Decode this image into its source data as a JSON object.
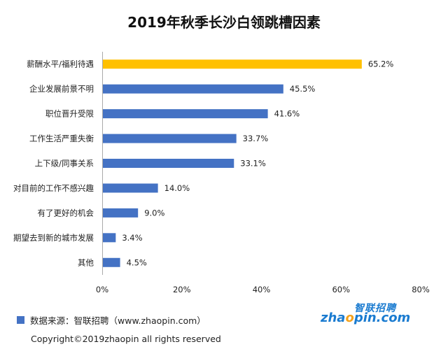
{
  "chart_data": {
    "type": "bar",
    "orientation": "horizontal",
    "title": "2019年秋季长沙白领跳槽因素",
    "categories": [
      "薪酬水平/福利待遇",
      "企业发展前景不明",
      "职位晋升受限",
      "工作生活严重失衡",
      "上下级/同事关系",
      "对目前的工作不感兴趣",
      "有了更好的机会",
      "期望去到新的城市发展",
      "其他"
    ],
    "values": [
      65.2,
      45.5,
      41.6,
      33.7,
      33.1,
      14.0,
      9.0,
      3.4,
      4.5
    ],
    "value_labels": [
      "65.2%",
      "45.5%",
      "41.6%",
      "33.7%",
      "33.1%",
      "14.0%",
      "9.0%",
      "3.4%",
      "4.5%"
    ],
    "highlight_index": 0,
    "xlim": [
      0,
      80
    ],
    "xticks": [
      0,
      20,
      40,
      60,
      80
    ],
    "xtick_labels": [
      "0%",
      "20%",
      "40%",
      "60%",
      "80%"
    ],
    "grid": false,
    "colors": {
      "bar": "#4472c4",
      "highlight": "#ffc000",
      "axis": "#aaaaaa"
    }
  },
  "footer": {
    "source": "数据来源：智联招聘（www.zhaopin.com）",
    "copyright": "Copyright©2019zhaopin all rights reserved"
  },
  "logo": {
    "top_text": "智联招聘",
    "main_prefix": "zha",
    "main_o": "o",
    "main_suffix": "pin.com",
    "colors": {
      "blue": "#1a7bd0",
      "orange": "#f5a21c"
    }
  }
}
